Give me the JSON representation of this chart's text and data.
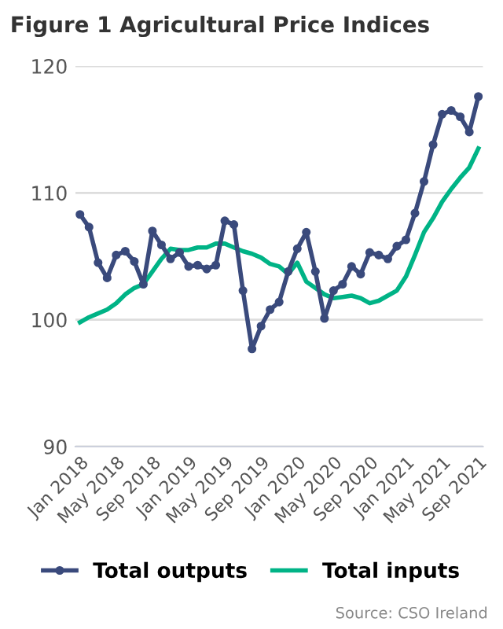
{
  "chart_data": {
    "type": "line",
    "title": "Figure 1 Agricultural Price Indices",
    "categories": [
      "Jan 2018",
      null,
      null,
      null,
      "May 2018",
      null,
      null,
      null,
      "Sep 2018",
      null,
      null,
      null,
      "Jan 2019",
      null,
      null,
      null,
      "May 2019",
      null,
      null,
      null,
      "Sep 2019",
      null,
      null,
      null,
      "Jan 2020",
      null,
      null,
      null,
      "May 2020",
      null,
      null,
      null,
      "Sep 2020",
      null,
      null,
      null,
      "Jan 2021",
      null,
      null,
      null,
      "May 2021",
      null,
      null,
      null,
      "Sep 2021"
    ],
    "series": [
      {
        "name": "Total outputs",
        "color": "#3a4a7c",
        "marker": "circle",
        "values": [
          108.3,
          107.3,
          104.5,
          103.3,
          105.1,
          105.4,
          104.6,
          102.8,
          107.0,
          105.9,
          104.8,
          105.3,
          104.2,
          104.3,
          104.0,
          104.3,
          107.8,
          107.5,
          102.3,
          97.7,
          99.5,
          100.8,
          101.4,
          103.8,
          105.6,
          106.9,
          103.8,
          100.1,
          102.3,
          102.8,
          104.2,
          103.6,
          105.3,
          105.1,
          104.8,
          105.8,
          106.3,
          108.4,
          110.9,
          113.8,
          116.2,
          116.5,
          116.0,
          114.8,
          117.6
        ]
      },
      {
        "name": "Total inputs",
        "color": "#00b386",
        "marker": "none",
        "values": [
          99.8,
          100.2,
          100.5,
          100.8,
          101.3,
          102.0,
          102.5,
          102.8,
          103.8,
          104.8,
          105.6,
          105.5,
          105.5,
          105.7,
          105.7,
          106.0,
          106.0,
          105.7,
          105.4,
          105.2,
          104.9,
          104.4,
          104.2,
          103.6,
          104.5,
          103.0,
          102.5,
          102.0,
          101.7,
          101.8,
          101.9,
          101.7,
          101.3,
          101.5,
          101.9,
          102.3,
          103.4,
          105.1,
          106.9,
          108.0,
          109.3,
          110.3,
          111.2,
          112.0,
          113.5
        ]
      }
    ],
    "ylim": [
      90,
      120
    ],
    "yticks": [
      90,
      100,
      110,
      120
    ],
    "grid": "y",
    "legend": "bottom",
    "line_style": "solid",
    "annotations": [
      "Source: CSO Ireland"
    ]
  }
}
